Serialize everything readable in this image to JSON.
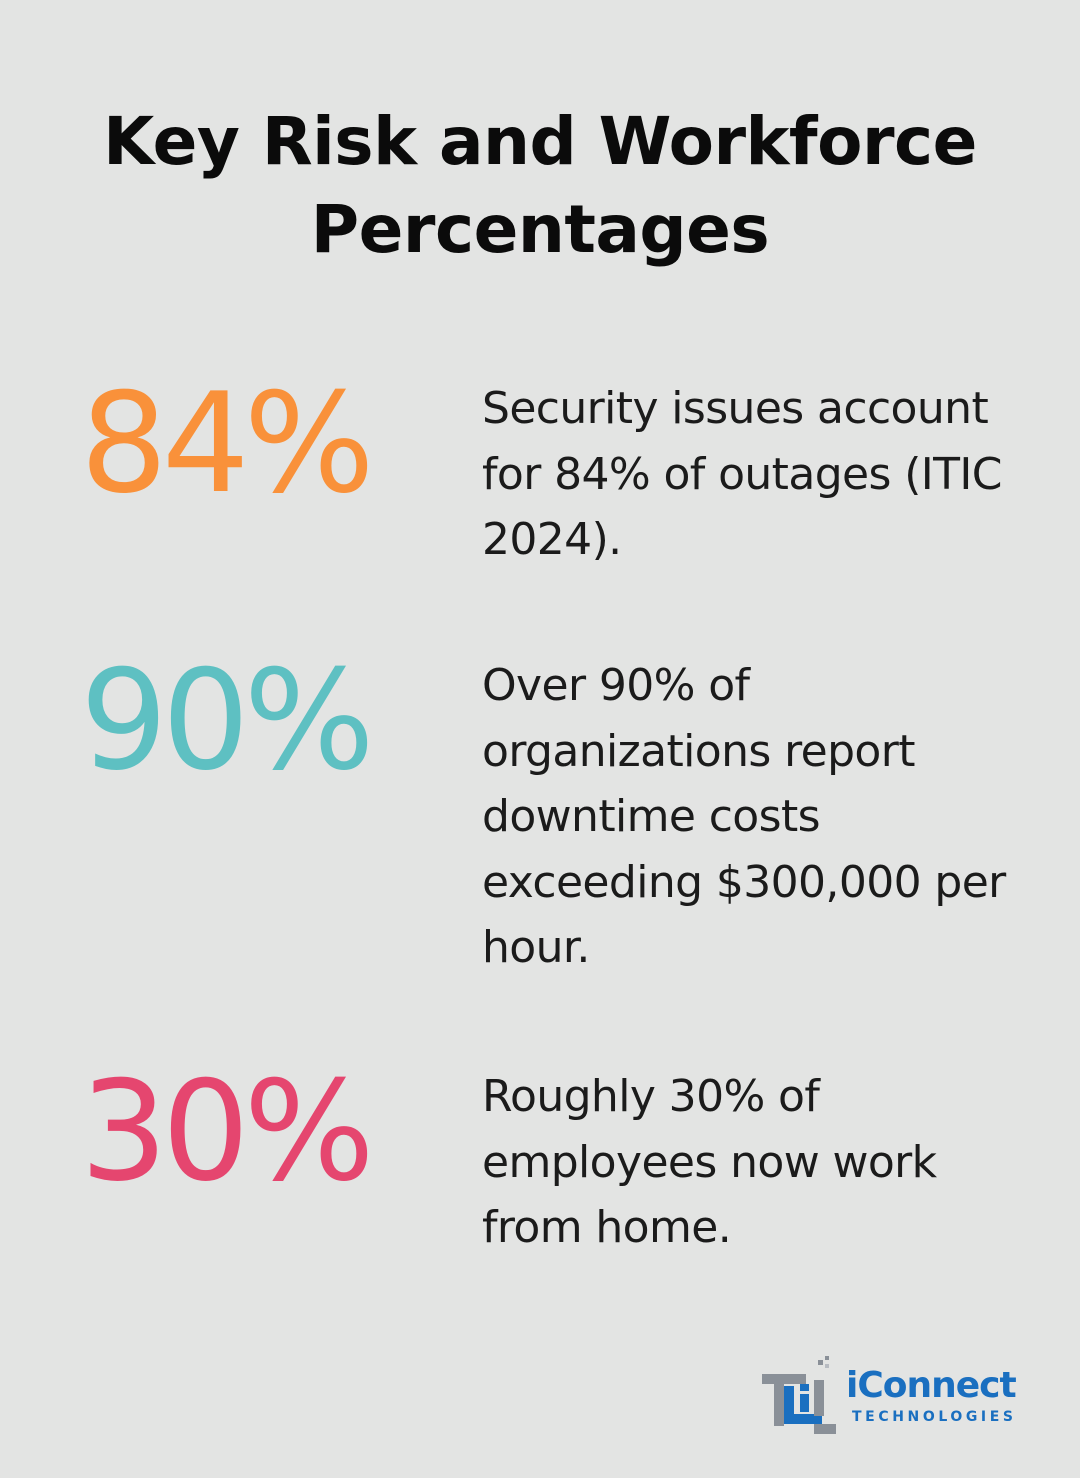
{
  "title": "Key Risk and Workforce Percentages",
  "stats": [
    {
      "value": "84%",
      "description": "Security issues account for 84% of outages (ITIC 2024).",
      "color": "#f9913a"
    },
    {
      "value": "90%",
      "description": "Over 90% of organizations report downtime costs exceeding $300,000 per hour.",
      "color": "#5ec0c2"
    },
    {
      "value": "30%",
      "description": "Roughly 30% of employees now work from home.",
      "color": "#e5466f"
    }
  ],
  "logo": {
    "brand": "iConnect",
    "tagline": "TECHNOLOGIES",
    "brand_color": "#1a6fc0",
    "mark_color": "#8a9098"
  }
}
